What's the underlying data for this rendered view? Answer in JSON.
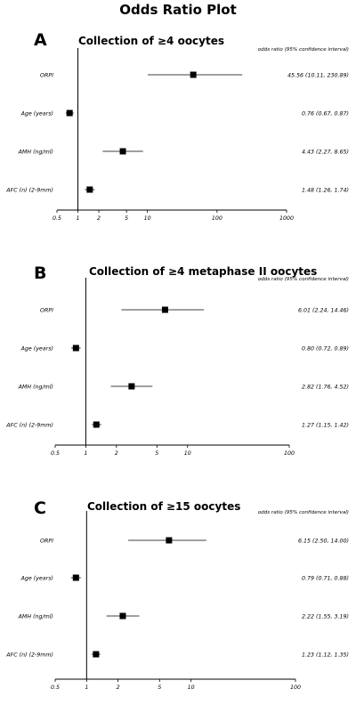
{
  "title": "Odds Ratio Plot",
  "header": "odds ratio (95% confidence interval)",
  "chart_data": [
    {
      "type": "forest",
      "letter": "A",
      "title": "Collection of ≥4 oocytes",
      "xscale": "log",
      "xlim": [
        0.5,
        1000
      ],
      "reference_line": 1,
      "xticks": [
        0.5,
        1,
        2,
        5,
        10,
        100,
        1000
      ],
      "xtick_labels": [
        "0.5",
        "1",
        "2",
        "5",
        "10",
        "100",
        "1000"
      ],
      "rows": [
        {
          "label": "ORPI",
          "or": 45.56,
          "lo": 10.11,
          "hi": 230.89,
          "text": "45.56 (10.11, 230.89)"
        },
        {
          "label": "Age (years)",
          "or": 0.76,
          "lo": 0.67,
          "hi": 0.87,
          "text": "0.76 (0.67, 0.87)"
        },
        {
          "label": "AMH (ng/ml)",
          "or": 4.43,
          "lo": 2.27,
          "hi": 8.65,
          "text": "4.43 (2.27, 8.65)"
        },
        {
          "label": "AFC (n) (2-9mm)",
          "or": 1.48,
          "lo": 1.26,
          "hi": 1.74,
          "text": "1.48 (1.26, 1.74)"
        }
      ]
    },
    {
      "type": "forest",
      "letter": "B",
      "title": "Collection of ≥4 metaphase II oocytes",
      "xscale": "log",
      "xlim": [
        0.5,
        100
      ],
      "reference_line": 1,
      "xticks": [
        0.5,
        1,
        2,
        5,
        10,
        100
      ],
      "xtick_labels": [
        "0.5",
        "1",
        "2",
        "5",
        "10",
        "100"
      ],
      "rows": [
        {
          "label": "ORPI",
          "or": 6.01,
          "lo": 2.24,
          "hi": 14.46,
          "text": "6.01 (2.24, 14.46)"
        },
        {
          "label": "Age (years)",
          "or": 0.8,
          "lo": 0.72,
          "hi": 0.89,
          "text": "0.80 (0.72, 0.89)"
        },
        {
          "label": "AMH (ng/ml)",
          "or": 2.82,
          "lo": 1.76,
          "hi": 4.52,
          "text": "2.82 (1.76, 4.52)"
        },
        {
          "label": "AFC (n) (2-9mm)",
          "or": 1.27,
          "lo": 1.15,
          "hi": 1.42,
          "text": "1.27 (1.15, 1.42)"
        }
      ]
    },
    {
      "type": "forest",
      "letter": "C",
      "title": "Collection of ≥15 oocytes",
      "xscale": "log",
      "xlim": [
        0.5,
        100
      ],
      "reference_line": 1,
      "xticks": [
        0.5,
        1,
        2,
        5,
        10,
        100
      ],
      "xtick_labels": [
        "0.5",
        "1",
        "2",
        "5",
        "10",
        "100"
      ],
      "rows": [
        {
          "label": "ORPI",
          "or": 6.15,
          "lo": 2.5,
          "hi": 14.0,
          "text": "6.15 (2.50, 14.00)"
        },
        {
          "label": "Age (years)",
          "or": 0.79,
          "lo": 0.71,
          "hi": 0.88,
          "text": "0.79 (0.71, 0.88)"
        },
        {
          "label": "AMH (ng/ml)",
          "or": 2.22,
          "lo": 1.55,
          "hi": 3.19,
          "text": "2.22 (1.55, 3.19)"
        },
        {
          "label": "AFC (n) (2-9mm)",
          "or": 1.23,
          "lo": 1.12,
          "hi": 1.35,
          "text": "1.23 (1.12, 1.35)"
        }
      ]
    }
  ]
}
